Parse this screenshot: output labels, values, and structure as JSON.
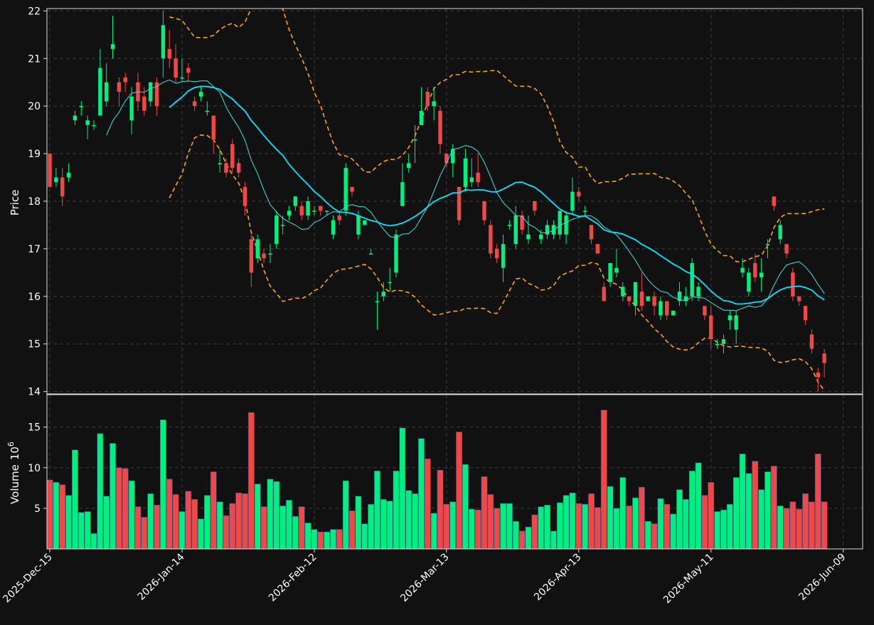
{
  "colors": {
    "background": "#111111",
    "grid": "#3a3a3a",
    "axis": "#dddddd",
    "up": "#00f080",
    "down": "#f04848",
    "ma_fast": "#40e0e0",
    "ma_slow": "#00e5ff",
    "bands": "#ffa500"
  },
  "chart_data": {
    "type": "candlestick",
    "style": "dark",
    "grid": true,
    "x_ticks": [
      "2025-Dec-15",
      "2026-Jan-14",
      "2026-Feb-12",
      "2026-Mar-13",
      "2026-Apr-13",
      "2026-May-11",
      "2026-Jun-09"
    ],
    "x_tick_index": [
      0,
      21,
      42,
      63,
      84,
      105,
      126
    ],
    "price_panel": {
      "ylabel": "Price",
      "ylim": [
        13.95,
        22.05
      ],
      "yticks": [
        14,
        15,
        16,
        17,
        18,
        19,
        20,
        21,
        22
      ]
    },
    "volume_panel": {
      "ylabel": "Volume",
      "ylabel_exponent": "6",
      "ylim": [
        0,
        19
      ],
      "yticks": [
        5,
        10,
        15
      ]
    },
    "candles": [
      [
        19.0,
        18.3,
        19.0,
        18.3
      ],
      [
        18.4,
        18.5,
        18.7,
        18.3
      ],
      [
        18.5,
        18.1,
        18.7,
        17.9
      ],
      [
        18.5,
        18.6,
        18.8,
        18.4
      ],
      [
        19.7,
        19.8,
        19.9,
        19.6
      ],
      [
        20.0,
        20.0,
        20.1,
        19.8
      ],
      [
        19.6,
        19.7,
        19.8,
        19.3
      ],
      [
        19.6,
        19.6,
        19.7,
        19.5
      ],
      [
        19.8,
        20.8,
        21.2,
        19.8
      ],
      [
        20.1,
        20.5,
        20.9,
        20.0
      ],
      [
        21.2,
        21.3,
        21.9,
        21.0
      ],
      [
        20.5,
        20.3,
        20.6,
        20.0
      ],
      [
        20.6,
        20.5,
        20.7,
        20.3
      ],
      [
        19.7,
        20.2,
        20.4,
        19.4
      ],
      [
        20.5,
        20.1,
        20.7,
        19.9
      ],
      [
        20.2,
        19.9,
        20.4,
        19.8
      ],
      [
        20.1,
        20.5,
        20.5,
        20.0
      ],
      [
        20.5,
        20.0,
        20.6,
        19.8
      ],
      [
        21.0,
        21.7,
        22.0,
        20.6
      ],
      [
        21.2,
        21.0,
        21.6,
        20.8
      ],
      [
        21.0,
        20.6,
        21.3,
        20.5
      ],
      [
        20.6,
        20.6,
        21.0,
        20.5
      ],
      [
        20.8,
        20.7,
        20.9,
        20.5
      ],
      [
        20.1,
        20.0,
        20.2,
        19.9
      ],
      [
        20.2,
        20.3,
        20.4,
        20.1
      ],
      [
        19.9,
        19.9,
        20.1,
        19.8
      ],
      [
        19.8,
        19.3,
        19.8,
        19.0
      ],
      [
        18.8,
        18.8,
        19.1,
        18.6
      ],
      [
        18.8,
        18.6,
        18.9,
        18.5
      ],
      [
        19.2,
        18.7,
        19.3,
        18.6
      ],
      [
        18.8,
        18.6,
        18.9,
        18.5
      ],
      [
        18.3,
        17.9,
        18.4,
        17.7
      ],
      [
        17.2,
        16.5,
        17.3,
        16.2
      ],
      [
        16.8,
        17.2,
        17.3,
        16.7
      ],
      [
        16.9,
        16.8,
        17.0,
        16.7
      ],
      [
        16.9,
        16.9,
        17.1,
        16.7
      ],
      [
        17.1,
        17.7,
        17.8,
        17.0
      ],
      [
        17.5,
        17.5,
        17.7,
        17.3
      ],
      [
        17.7,
        17.8,
        17.9,
        17.6
      ],
      [
        17.9,
        18.1,
        18.1,
        17.8
      ],
      [
        17.9,
        17.7,
        18.0,
        17.6
      ],
      [
        17.7,
        18.0,
        18.1,
        17.6
      ],
      [
        17.8,
        17.8,
        17.9,
        17.7
      ],
      [
        17.9,
        17.8,
        17.9,
        17.7
      ],
      [
        17.8,
        17.8,
        17.8,
        17.7
      ],
      [
        17.3,
        17.6,
        17.7,
        17.2
      ],
      [
        17.7,
        17.6,
        17.8,
        17.5
      ],
      [
        17.8,
        18.7,
        18.8,
        17.7
      ],
      [
        18.3,
        18.2,
        18.3,
        18.1
      ],
      [
        17.3,
        17.7,
        17.8,
        17.2
      ],
      [
        17.5,
        17.6,
        17.6,
        17.5
      ],
      [
        16.9,
        16.9,
        17.0,
        16.9
      ],
      [
        15.9,
        15.9,
        16.1,
        15.3
      ],
      [
        16.0,
        16.1,
        16.3,
        15.9
      ],
      [
        16.3,
        16.3,
        16.6,
        16.1
      ],
      [
        16.5,
        17.3,
        17.4,
        16.4
      ],
      [
        17.9,
        18.4,
        18.8,
        17.9
      ],
      [
        18.7,
        18.8,
        19.0,
        18.6
      ],
      [
        19.3,
        19.3,
        19.6,
        18.8
      ],
      [
        19.6,
        19.9,
        20.4,
        19.6
      ],
      [
        20.3,
        20.0,
        20.4,
        19.9
      ],
      [
        20.0,
        20.1,
        20.4,
        19.7
      ],
      [
        19.9,
        19.2,
        20.0,
        19.0
      ],
      [
        19.0,
        18.8,
        19.0,
        18.7
      ],
      [
        18.8,
        19.1,
        19.2,
        18.5
      ],
      [
        18.3,
        17.6,
        18.3,
        17.5
      ],
      [
        18.3,
        18.9,
        19.1,
        18.2
      ],
      [
        18.4,
        18.5,
        18.9,
        18.3
      ],
      [
        18.6,
        18.4,
        19.0,
        18.3
      ],
      [
        18.0,
        17.6,
        18.0,
        17.5
      ],
      [
        17.5,
        16.9,
        17.6,
        16.8
      ],
      [
        17.0,
        16.8,
        17.1,
        16.7
      ],
      [
        16.6,
        17.1,
        17.3,
        16.3
      ],
      [
        17.5,
        17.5,
        17.6,
        17.4
      ],
      [
        17.1,
        17.7,
        17.9,
        17.0
      ],
      [
        17.7,
        17.4,
        17.8,
        17.3
      ],
      [
        17.2,
        17.3,
        17.7,
        17.1
      ],
      [
        18.0,
        17.8,
        18.0,
        17.7
      ],
      [
        17.2,
        17.3,
        17.4,
        17.1
      ],
      [
        17.3,
        17.5,
        17.6,
        17.2
      ],
      [
        17.3,
        17.5,
        17.6,
        17.2
      ],
      [
        17.3,
        17.8,
        17.8,
        17.2
      ],
      [
        17.3,
        17.7,
        17.8,
        17.1
      ],
      [
        17.8,
        18.2,
        18.5,
        17.7
      ],
      [
        18.2,
        18.1,
        18.3,
        18.0
      ],
      [
        17.8,
        17.8,
        17.9,
        17.7
      ],
      [
        17.5,
        17.2,
        17.5,
        17.1
      ],
      [
        17.1,
        16.9,
        17.1,
        16.9
      ],
      [
        16.2,
        15.9,
        16.3,
        15.9
      ],
      [
        16.3,
        16.7,
        16.7,
        16.2
      ],
      [
        16.5,
        16.6,
        17.0,
        16.4
      ],
      [
        16.0,
        16.2,
        16.3,
        15.9
      ],
      [
        16.0,
        15.9,
        16.0,
        15.8
      ],
      [
        15.8,
        16.3,
        16.3,
        15.6
      ],
      [
        16.1,
        15.8,
        16.5,
        15.7
      ],
      [
        15.9,
        16.0,
        16.0,
        15.9
      ],
      [
        16.0,
        15.8,
        16.1,
        15.6
      ],
      [
        15.6,
        15.9,
        16.0,
        15.5
      ],
      [
        15.9,
        15.6,
        15.9,
        15.5
      ],
      [
        15.6,
        15.7,
        15.7,
        15.6
      ],
      [
        15.9,
        16.1,
        16.3,
        15.8
      ],
      [
        15.9,
        16.0,
        16.2,
        15.8
      ],
      [
        16.0,
        16.7,
        16.8,
        15.9
      ],
      [
        16.0,
        16.2,
        16.3,
        15.9
      ],
      [
        15.8,
        15.6,
        15.8,
        15.5
      ],
      [
        15.6,
        15.1,
        15.8,
        14.9
      ],
      [
        15.0,
        15.0,
        15.1,
        14.9
      ],
      [
        15.0,
        15.1,
        15.2,
        14.8
      ],
      [
        15.5,
        15.6,
        15.7,
        15.3
      ],
      [
        15.3,
        15.6,
        15.7,
        15.0
      ],
      [
        16.5,
        16.6,
        16.8,
        16.4
      ],
      [
        16.1,
        16.5,
        16.6,
        16.0
      ],
      [
        16.7,
        16.4,
        16.9,
        16.3
      ],
      [
        16.4,
        16.5,
        16.8,
        16.1
      ],
      [
        17.1,
        17.1,
        17.2,
        16.8
      ],
      [
        18.1,
        17.9,
        18.1,
        17.8
      ],
      [
        17.2,
        17.5,
        17.6,
        17.1
      ],
      [
        17.1,
        16.9,
        17.1,
        16.8
      ],
      [
        16.5,
        16.0,
        16.6,
        15.9
      ],
      [
        16.0,
        15.9,
        16.0,
        15.8
      ],
      [
        15.8,
        15.5,
        15.8,
        15.4
      ],
      [
        15.2,
        14.9,
        15.3,
        14.8
      ],
      [
        14.4,
        14.3,
        14.5,
        14.0
      ],
      [
        14.8,
        14.6,
        14.9,
        14.3
      ]
    ],
    "volume": [
      8.5,
      8.2,
      7.9,
      6.6,
      12.2,
      4.5,
      4.6,
      1.9,
      14.2,
      6.5,
      13.0,
      10.0,
      9.9,
      8.4,
      5.2,
      3.9,
      6.8,
      5.4,
      15.9,
      8.6,
      6.7,
      4.6,
      7.1,
      6.1,
      3.7,
      6.6,
      9.5,
      5.8,
      4.1,
      5.6,
      6.9,
      6.8,
      16.8,
      8.0,
      5.2,
      8.6,
      8.3,
      5.3,
      6.0,
      4.0,
      5.2,
      3.2,
      2.4,
      2.1,
      2.1,
      2.4,
      2.4,
      8.4,
      4.7,
      6.5,
      3.1,
      5.5,
      9.6,
      6.1,
      5.9,
      9.6,
      14.9,
      7.2,
      6.8,
      13.6,
      11.1,
      4.4,
      9.7,
      5.5,
      5.8,
      14.4,
      10.4,
      4.9,
      4.8,
      8.9,
      6.7,
      5.0,
      5.6,
      5.6,
      3.4,
      2.2,
      2.7,
      4.2,
      5.2,
      5.4,
      2.2,
      5.7,
      6.6,
      6.9,
      5.6,
      5.5,
      6.8,
      5.1,
      17.1,
      7.7,
      5.0,
      8.8,
      5.3,
      6.3,
      7.6,
      3.4,
      3.1,
      6.2,
      5.5,
      4.3,
      7.3,
      6.1,
      9.6,
      10.6,
      6.6,
      8.2,
      4.6,
      4.8,
      5.5,
      8.8,
      11.7,
      9.3,
      10.8,
      7.3,
      9.5,
      10.2,
      5.3,
      5.0,
      5.8,
      4.9,
      6.8,
      5.8,
      11.7,
      5.8
    ]
  }
}
